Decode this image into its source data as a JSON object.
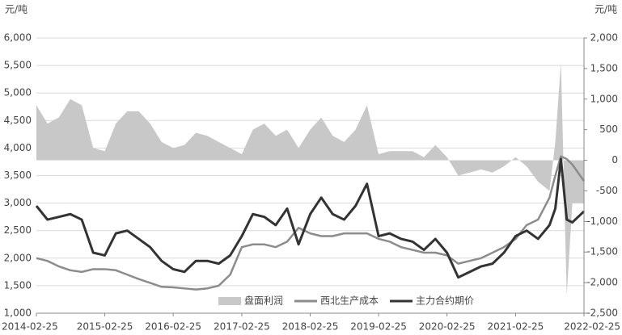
{
  "chart_data": {
    "type": "line",
    "y_unit_label": "元/吨",
    "y2_unit_label": "元/吨",
    "x": [
      "2014-02-25",
      "2014-04-25",
      "2014-06-25",
      "2014-08-25",
      "2014-10-25",
      "2014-12-25",
      "2015-02-25",
      "2015-04-25",
      "2015-06-25",
      "2015-08-25",
      "2015-10-25",
      "2015-12-25",
      "2016-02-25",
      "2016-04-25",
      "2016-06-25",
      "2016-08-25",
      "2016-10-25",
      "2016-12-25",
      "2017-02-25",
      "2017-04-25",
      "2017-06-25",
      "2017-08-25",
      "2017-10-25",
      "2017-12-25",
      "2018-02-25",
      "2018-04-25",
      "2018-06-25",
      "2018-08-25",
      "2018-10-25",
      "2018-12-25",
      "2019-02-25",
      "2019-04-25",
      "2019-06-25",
      "2019-08-25",
      "2019-10-25",
      "2019-12-25",
      "2020-02-25",
      "2020-04-25",
      "2020-06-25",
      "2020-08-25",
      "2020-10-25",
      "2020-12-25",
      "2021-02-25",
      "2021-04-25",
      "2021-06-25",
      "2021-08-25",
      "2021-09-25",
      "2021-10-25",
      "2021-11-25",
      "2021-12-25",
      "2022-02-25"
    ],
    "series": [
      {
        "name": "盘面利润",
        "kind": "area",
        "axis": "y2",
        "color": "#c8c8c8",
        "values": [
          900,
          600,
          700,
          1000,
          900,
          200,
          150,
          600,
          800,
          800,
          600,
          300,
          200,
          250,
          450,
          400,
          300,
          200,
          100,
          500,
          600,
          400,
          500,
          200,
          500,
          700,
          400,
          300,
          500,
          900,
          100,
          150,
          150,
          150,
          50,
          250,
          50,
          -250,
          -200,
          -150,
          -200,
          -100,
          50,
          -100,
          -350,
          -500,
          300,
          1600,
          -2200,
          -700,
          -700
        ]
      },
      {
        "name": "西北生产成本",
        "kind": "line",
        "color": "#8c8c8c",
        "values": [
          2000,
          1950,
          1850,
          1780,
          1750,
          1800,
          1800,
          1780,
          1700,
          1620,
          1550,
          1480,
          1470,
          1450,
          1430,
          1450,
          1500,
          1700,
          2200,
          2250,
          2250,
          2200,
          2300,
          2550,
          2450,
          2400,
          2400,
          2450,
          2450,
          2450,
          2350,
          2300,
          2200,
          2150,
          2100,
          2100,
          2050,
          1900,
          1950,
          2000,
          2100,
          2200,
          2350,
          2600,
          2700,
          3100,
          3500,
          3850,
          3800,
          3700,
          3400
        ]
      },
      {
        "name": "主力合约期价",
        "kind": "line",
        "color": "#333333",
        "values": [
          2950,
          2700,
          2750,
          2800,
          2700,
          2100,
          2050,
          2450,
          2500,
          2350,
          2200,
          1950,
          1800,
          1750,
          1950,
          1950,
          1900,
          2050,
          2400,
          2800,
          2750,
          2600,
          2900,
          2250,
          2800,
          3100,
          2800,
          2700,
          2950,
          3350,
          2400,
          2450,
          2350,
          2300,
          2150,
          2350,
          2100,
          1650,
          1750,
          1850,
          1900,
          2100,
          2400,
          2500,
          2350,
          2600,
          2900,
          3800,
          2700,
          2650,
          2850
        ]
      }
    ],
    "xlim": [
      "2014-02-25",
      "2022-02-25"
    ],
    "xticks": [
      "2014-02-25",
      "2015-02-25",
      "2016-02-25",
      "2017-02-25",
      "2018-02-25",
      "2019-02-25",
      "2020-02-25",
      "2021-02-25",
      "2022-02-25"
    ],
    "ylim": [
      1000,
      6000
    ],
    "yticks": [
      {
        "value": 1000,
        "label": "1,000"
      },
      {
        "value": 1500,
        "label": "1,500"
      },
      {
        "value": 2000,
        "label": "2,000"
      },
      {
        "value": 2500,
        "label": "2,500"
      },
      {
        "value": 3000,
        "label": "3,000"
      },
      {
        "value": 3500,
        "label": "3,500"
      },
      {
        "value": 4000,
        "label": "4,000"
      },
      {
        "value": 4500,
        "label": "4,500"
      },
      {
        "value": 5000,
        "label": "5,000"
      },
      {
        "value": 5500,
        "label": "5,500"
      },
      {
        "value": 6000,
        "label": "6,000"
      }
    ],
    "y2lim": [
      -2500,
      2000
    ],
    "y2ticks": [
      {
        "value": -2500,
        "label": "-2,500"
      },
      {
        "value": -2000,
        "label": "-2,000"
      },
      {
        "value": -1500,
        "label": "-1,500"
      },
      {
        "value": -1000,
        "label": "-1,000"
      },
      {
        "value": -500,
        "label": "-500"
      },
      0,
      500,
      {
        "value": 1000,
        "label": "1,000"
      },
      {
        "value": 1500,
        "label": "1,500"
      },
      {
        "value": 2000,
        "label": "2,000"
      }
    ],
    "grid": true
  }
}
